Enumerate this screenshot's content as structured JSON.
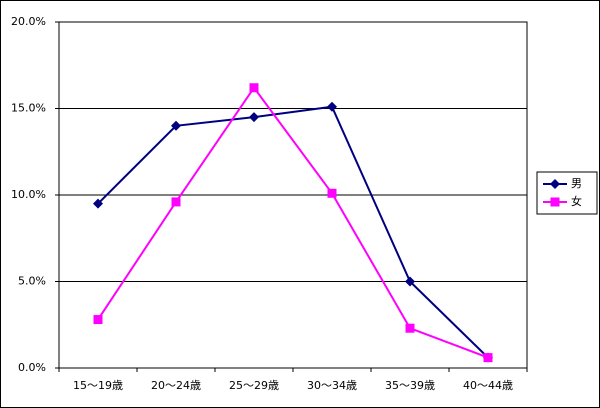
{
  "chart_data": {
    "type": "line",
    "categories": [
      "15～19歳",
      "20～24歳",
      "25～29歳",
      "30～34歳",
      "35～39歳",
      "40～44歳"
    ],
    "series": [
      {
        "name": "男",
        "color": "#000080",
        "marker": "diamond",
        "values": [
          9.5,
          14.0,
          14.5,
          15.1,
          5.0,
          0.6
        ]
      },
      {
        "name": "女",
        "color": "#ff00ff",
        "marker": "square",
        "values": [
          2.8,
          9.6,
          16.2,
          10.1,
          2.3,
          0.6
        ]
      }
    ],
    "ylim": [
      0,
      20
    ],
    "yticks": [
      {
        "value": 0,
        "label": "0.0%"
      },
      {
        "value": 5,
        "label": "5.0%"
      },
      {
        "value": 10,
        "label": "10.0%"
      },
      {
        "value": 15,
        "label": "15.0%"
      },
      {
        "value": 20,
        "label": "20.0%"
      }
    ],
    "grid": true,
    "legend": "right"
  }
}
